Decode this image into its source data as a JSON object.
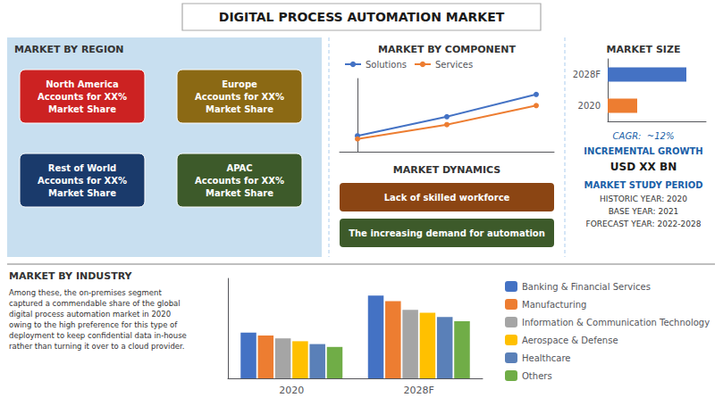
{
  "title": "DIGITAL PROCESS AUTOMATION MARKET",
  "chart_data": [
    {
      "type": "map",
      "title": "MARKET BY REGION",
      "color": "#c8dff0",
      "annotations": [
        {
          "text": "North America\nAccounts for XX%\nMarket Share",
          "color": "#cc2222"
        },
        {
          "text": "Europe\nAccounts for XX%\nMarket Share",
          "color": "#8B6914"
        },
        {
          "text": "APAC\nAccounts for XX%\nMarket Share",
          "color": "#3d5a2a"
        },
        {
          "text": "Rest of World\nAccounts for XX%\nMarket Share",
          "color": "#1a3a6b"
        }
      ]
    },
    {
      "type": "line",
      "title": "MARKET BY COMPONENT",
      "x": [
        0,
        1,
        2
      ],
      "series": [
        {
          "name": "Solutions",
          "color": "#4472c4",
          "values": [
            1.0,
            1.6,
            2.3
          ]
        },
        {
          "name": "Services",
          "color": "#ed7d31",
          "values": [
            0.9,
            1.35,
            1.95
          ]
        }
      ],
      "xlim": [
        -0.2,
        2.2
      ],
      "ylim": [
        0.5,
        2.8
      ],
      "tick_labels": false,
      "marker": "circle",
      "legend": "upper left"
    },
    {
      "type": "text",
      "title": "MARKET DYNAMICS",
      "annotations": [
        {
          "text": "Lack of skilled workforce",
          "color": "#8B4513"
        },
        {
          "text": "The increasing demand for automation",
          "color": "#3d5a2a"
        }
      ]
    },
    {
      "type": "bar",
      "orientation": "horizontal",
      "title": "MARKET SIZE",
      "categories": [
        "2028F",
        "2020"
      ],
      "values": [
        0.8,
        0.3
      ],
      "colors": [
        "#4472c4",
        "#ed7d31"
      ],
      "xlim": [
        0,
        1
      ],
      "tick_labels": "y",
      "annotations": [
        "CAGR:  ~12%",
        "INCREMENTAL GROWTH",
        "USD XX BN",
        "MARKET STUDY PERIOD",
        "HISTORIC YEAR: 2020",
        "BASE YEAR: 2021",
        "FORECAST YEAR: 2022-2028"
      ]
    },
    {
      "type": "bar",
      "title": "MARKET BY INDUSTRY",
      "annotations": [
        "Among these, the on-premises segment\ncaptured a commendable share of the global\ndigital process automation market in 2020\nowing to the high preference for this type of\ndeployment to keep confidential data in-house\nrather than turning it over to a cloud provider."
      ],
      "categories": [
        "2020",
        "2028F"
      ],
      "series": [
        {
          "name": "Banking & Financial Services",
          "color": "#4472c4",
          "values": [
            3.2,
            5.8
          ]
        },
        {
          "name": "Manufacturing",
          "color": "#ed7d31",
          "values": [
            3.0,
            5.4
          ]
        },
        {
          "name": "Information & Communication Technology",
          "color": "#a5a5a5",
          "values": [
            2.8,
            4.8
          ]
        },
        {
          "name": "Aerospace & Defense",
          "color": "#ffc000",
          "values": [
            2.6,
            4.6
          ]
        },
        {
          "name": "Healthcare",
          "color": "#5a80b8",
          "values": [
            2.4,
            4.3
          ]
        },
        {
          "name": "Others",
          "color": "#70ad47",
          "values": [
            2.2,
            4.0
          ]
        }
      ],
      "ylim": [
        0,
        7
      ],
      "tick_labels": "x",
      "legend": "right"
    }
  ]
}
